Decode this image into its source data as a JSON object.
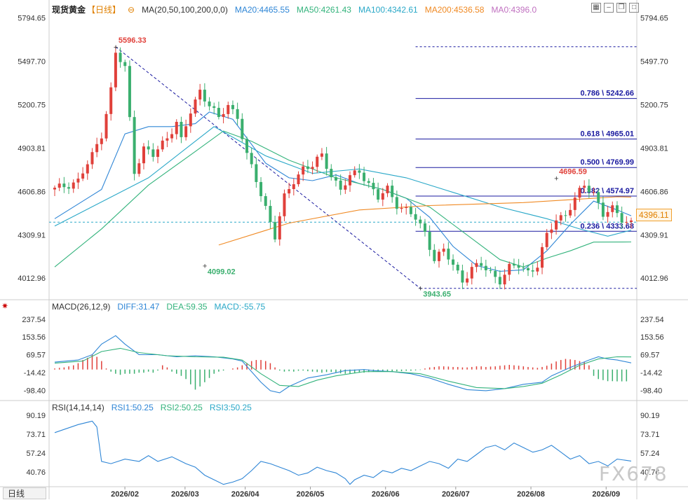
{
  "header": {
    "symbol": "现货黄金",
    "period_tag": "【日线】",
    "ma_label": "MA(20,50,100,200,0,0)",
    "ma20": "MA20:4465.55",
    "ma50": "MA50:4261.43",
    "ma100": "MA100:4342.61",
    "ma200": "MA200:4536.58",
    "ma0": "MA0:4396.0"
  },
  "macd_header": {
    "label": "MACD(26,12,9)",
    "diff": "DIFF:31.47",
    "dea": "DEA:59.35",
    "macd": "MACD:-55.75"
  },
  "rsi_header": {
    "label": "RSI(14,14,14)",
    "rsi1": "RSI1:50.25",
    "rsi2": "RSI2:50.25",
    "rsi3": "RSI3:50.25"
  },
  "footer": {
    "period_tab": "日线",
    "watermark": "FX678"
  },
  "colors": {
    "up": "#e0403a",
    "down": "#3aaf6e",
    "ma20": "#2f86d6",
    "ma50": "#33b37c",
    "ma100": "#2aa8c8",
    "ma200": "#f08a24",
    "fib": "#1a1aa0",
    "price_line": "#2aa8c8",
    "diff": "#2f86d6",
    "dea": "#33b37c",
    "rsi": "#2f86d6"
  },
  "chart_data": [
    {
      "type": "candlestick",
      "title": "",
      "ylim": [
        3880,
        5830
      ],
      "y_ticks": [
        5794.65,
        5497.7,
        5200.75,
        4903.81,
        4606.86,
        4309.91,
        4012.96
      ],
      "x_ticks": [
        "2026/02",
        "2026/03",
        "2026/04",
        "2026/05",
        "2026/06",
        "2026/07",
        "2026/08",
        "2026/09"
      ],
      "annotations": [
        {
          "text": "5596.33",
          "value": 5596.33
        },
        {
          "text": "4099.02",
          "value": 4099.02
        },
        {
          "text": "3943.65",
          "value": 3943.65
        },
        {
          "text": "4696.59",
          "value": 4696.59
        }
      ],
      "fibonacci": [
        {
          "label": "0.786 \\ 5242.66",
          "value": 5242.66
        },
        {
          "label": "0.618 \\ 4965.01",
          "value": 4965.01
        },
        {
          "label": "0.500 \\ 4769.99",
          "value": 4769.99
        },
        {
          "label": "0.382 \\ 4574.97",
          "value": 4574.97
        },
        {
          "label": "0.236 \\ 4333.68",
          "value": 4333.68
        }
      ],
      "current_price": "4396.11",
      "current_value": 4396.11,
      "close_path": [
        [
          0,
          4620
        ],
        [
          5,
          4680
        ],
        [
          8,
          4850
        ],
        [
          10,
          5000
        ],
        [
          12,
          5300
        ],
        [
          13,
          5550
        ],
        [
          15,
          5450
        ],
        [
          17,
          4750
        ],
        [
          19,
          4900
        ],
        [
          21,
          4850
        ],
        [
          24,
          4980
        ],
        [
          26,
          5080
        ],
        [
          27,
          4950
        ],
        [
          29,
          5150
        ],
        [
          31,
          5300
        ],
        [
          33,
          5200
        ],
        [
          35,
          5100
        ],
        [
          37,
          5200
        ],
        [
          39,
          5120
        ],
        [
          41,
          4850
        ],
        [
          43,
          4680
        ],
        [
          45,
          4500
        ],
        [
          47,
          4300
        ],
        [
          49,
          4560
        ],
        [
          51,
          4680
        ],
        [
          53,
          4770
        ],
        [
          55,
          4780
        ],
        [
          57,
          4850
        ],
        [
          59,
          4720
        ],
        [
          61,
          4620
        ],
        [
          63,
          4700
        ],
        [
          65,
          4750
        ],
        [
          67,
          4660
        ],
        [
          69,
          4560
        ],
        [
          71,
          4620
        ],
        [
          73,
          4520
        ],
        [
          75,
          4480
        ],
        [
          77,
          4420
        ],
        [
          79,
          4320
        ],
        [
          81,
          4150
        ],
        [
          83,
          4200
        ],
        [
          85,
          4100
        ],
        [
          87,
          4000
        ],
        [
          89,
          4080
        ],
        [
          91,
          4100
        ],
        [
          93,
          4050
        ],
        [
          95,
          4000
        ],
        [
          97,
          4080
        ],
        [
          99,
          4100
        ],
        [
          101,
          4060
        ],
        [
          103,
          4100
        ],
        [
          105,
          4300
        ],
        [
          107,
          4420
        ],
        [
          109,
          4450
        ],
        [
          111,
          4550
        ],
        [
          113,
          4650
        ],
        [
          115,
          4600
        ],
        [
          117,
          4450
        ],
        [
          119,
          4480
        ],
        [
          121,
          4420
        ],
        [
          123,
          4396
        ]
      ],
      "ma_paths": {
        "ma20": [
          [
            0,
            4420
          ],
          [
            10,
            4620
          ],
          [
            15,
            5000
          ],
          [
            20,
            5050
          ],
          [
            25,
            5050
          ],
          [
            30,
            5070
          ],
          [
            33,
            5150
          ],
          [
            38,
            5100
          ],
          [
            45,
            4800
          ],
          [
            50,
            4700
          ],
          [
            55,
            4680
          ],
          [
            60,
            4720
          ],
          [
            65,
            4660
          ],
          [
            70,
            4620
          ],
          [
            75,
            4560
          ],
          [
            80,
            4430
          ],
          [
            85,
            4230
          ],
          [
            90,
            4100
          ],
          [
            95,
            4060
          ],
          [
            100,
            4070
          ],
          [
            105,
            4200
          ],
          [
            110,
            4380
          ],
          [
            115,
            4540
          ],
          [
            120,
            4480
          ],
          [
            123,
            4440
          ]
        ],
        "ma50": [
          [
            0,
            4090
          ],
          [
            10,
            4350
          ],
          [
            20,
            4650
          ],
          [
            30,
            4880
          ],
          [
            36,
            5020
          ],
          [
            42,
            4950
          ],
          [
            50,
            4820
          ],
          [
            60,
            4700
          ],
          [
            70,
            4620
          ],
          [
            80,
            4500
          ],
          [
            90,
            4260
          ],
          [
            95,
            4140
          ],
          [
            100,
            4090
          ],
          [
            105,
            4150
          ],
          [
            110,
            4200
          ],
          [
            115,
            4260
          ],
          [
            123,
            4261
          ]
        ],
        "ma100": [
          [
            0,
            4370
          ],
          [
            20,
            4700
          ],
          [
            34,
            5050
          ],
          [
            45,
            4850
          ],
          [
            55,
            4730
          ],
          [
            65,
            4760
          ],
          [
            75,
            4700
          ],
          [
            85,
            4600
          ],
          [
            95,
            4500
          ],
          [
            105,
            4420
          ],
          [
            112,
            4350
          ],
          [
            118,
            4300
          ],
          [
            123,
            4342
          ]
        ],
        "ma200": [
          [
            35,
            4240
          ],
          [
            50,
            4390
          ],
          [
            65,
            4480
          ],
          [
            80,
            4510
          ],
          [
            90,
            4520
          ],
          [
            100,
            4530
          ],
          [
            110,
            4550
          ],
          [
            120,
            4570
          ],
          [
            123,
            4568
          ]
        ]
      }
    },
    {
      "type": "bar",
      "title": "MACD(26,12,9)",
      "ylim": [
        -140,
        290
      ],
      "y_ticks": [
        237.54,
        153.56,
        69.57,
        -14.42,
        -98.4
      ],
      "histogram": [
        5,
        8,
        10,
        15,
        20,
        30,
        45,
        55,
        70,
        60,
        40,
        5,
        -10,
        -20,
        -25,
        -20,
        -20,
        -20,
        -15,
        -15,
        -10,
        -15,
        -5,
        20,
        10,
        -10,
        -20,
        -30,
        -45,
        -70,
        -95,
        -80,
        -60,
        -40,
        -20,
        -10,
        -5,
        0,
        5,
        10,
        20,
        30,
        40,
        45,
        45,
        40,
        30,
        10,
        -5,
        -10,
        -8,
        -10,
        -6,
        -5,
        -8,
        -10,
        -12,
        -15,
        -12,
        -12,
        -15,
        -18,
        -20,
        -20,
        -18,
        -15,
        -15,
        -12,
        -10,
        -10,
        -8,
        -8,
        -8,
        -8,
        -8,
        -6,
        -6,
        -4,
        -2,
        5,
        10,
        12,
        15,
        15,
        14,
        12,
        12,
        10,
        10,
        12,
        15,
        15,
        12,
        14,
        15,
        18,
        20,
        22,
        20,
        18,
        15,
        12,
        10,
        8,
        12,
        18,
        28,
        38,
        45,
        50,
        48,
        45,
        40,
        35,
        20,
        -30,
        -45,
        -50,
        -55,
        -55,
        -56,
        -56,
        -55.75
      ],
      "series": [
        {
          "name": "DIFF",
          "values": [
            [
              0,
              35
            ],
            [
              5,
              45
            ],
            [
              8,
              70
            ],
            [
              10,
              120
            ],
            [
              13,
              160
            ],
            [
              15,
              120
            ],
            [
              18,
              70
            ],
            [
              22,
              70
            ],
            [
              26,
              60
            ],
            [
              30,
              65
            ],
            [
              34,
              60
            ],
            [
              38,
              50
            ],
            [
              40,
              40
            ],
            [
              42,
              -10
            ],
            [
              44,
              -60
            ],
            [
              46,
              -100
            ],
            [
              48,
              -110
            ],
            [
              50,
              -80
            ],
            [
              54,
              -40
            ],
            [
              58,
              -25
            ],
            [
              62,
              -5
            ],
            [
              66,
              0
            ],
            [
              68,
              -5
            ],
            [
              72,
              -10
            ],
            [
              76,
              -20
            ],
            [
              80,
              -40
            ],
            [
              84,
              -70
            ],
            [
              88,
              -95
            ],
            [
              92,
              -100
            ],
            [
              96,
              -90
            ],
            [
              100,
              -70
            ],
            [
              104,
              -60
            ],
            [
              106,
              -30
            ],
            [
              110,
              10
            ],
            [
              114,
              45
            ],
            [
              116,
              60
            ],
            [
              118,
              50
            ],
            [
              120,
              45
            ],
            [
              123,
              31.47
            ]
          ]
        },
        {
          "name": "DEA",
          "values": [
            [
              0,
              30
            ],
            [
              6,
              40
            ],
            [
              10,
              85
            ],
            [
              14,
              100
            ],
            [
              18,
              80
            ],
            [
              24,
              65
            ],
            [
              30,
              60
            ],
            [
              36,
              58
            ],
            [
              40,
              45
            ],
            [
              44,
              -20
            ],
            [
              48,
              -75
            ],
            [
              52,
              -80
            ],
            [
              56,
              -50
            ],
            [
              60,
              -30
            ],
            [
              66,
              -10
            ],
            [
              72,
              -10
            ],
            [
              78,
              -20
            ],
            [
              84,
              -55
            ],
            [
              90,
              -85
            ],
            [
              96,
              -90
            ],
            [
              100,
              -80
            ],
            [
              104,
              -65
            ],
            [
              108,
              -25
            ],
            [
              112,
              20
            ],
            [
              116,
              50
            ],
            [
              120,
              60
            ],
            [
              123,
              59.35
            ]
          ]
        }
      ]
    },
    {
      "type": "line",
      "title": "RSI(14,14,14)",
      "ylim": [
        28,
        98
      ],
      "y_ticks": [
        90.19,
        73.71,
        57.24,
        40.76
      ],
      "series": [
        {
          "name": "RSI1",
          "values": [
            [
              0,
              75
            ],
            [
              5,
              82
            ],
            [
              8,
              85
            ],
            [
              9,
              80
            ],
            [
              10,
              50
            ],
            [
              12,
              48
            ],
            [
              15,
              52
            ],
            [
              18,
              50
            ],
            [
              20,
              55
            ],
            [
              22,
              50
            ],
            [
              25,
              54
            ],
            [
              28,
              48
            ],
            [
              30,
              45
            ],
            [
              32,
              38
            ],
            [
              34,
              34
            ],
            [
              36,
              30
            ],
            [
              38,
              32
            ],
            [
              40,
              35
            ],
            [
              42,
              42
            ],
            [
              44,
              50
            ],
            [
              46,
              48
            ],
            [
              48,
              45
            ],
            [
              50,
              42
            ],
            [
              52,
              38
            ],
            [
              54,
              40
            ],
            [
              56,
              45
            ],
            [
              58,
              42
            ],
            [
              60,
              40
            ],
            [
              62,
              35
            ],
            [
              63,
              30
            ],
            [
              64,
              34
            ],
            [
              66,
              38
            ],
            [
              68,
              36
            ],
            [
              70,
              42
            ],
            [
              72,
              40
            ],
            [
              74,
              44
            ],
            [
              76,
              42
            ],
            [
              78,
              46
            ],
            [
              80,
              50
            ],
            [
              82,
              48
            ],
            [
              84,
              44
            ],
            [
              86,
              52
            ],
            [
              88,
              50
            ],
            [
              90,
              56
            ],
            [
              92,
              62
            ],
            [
              94,
              64
            ],
            [
              96,
              60
            ],
            [
              98,
              66
            ],
            [
              100,
              62
            ],
            [
              102,
              58
            ],
            [
              104,
              60
            ],
            [
              106,
              64
            ],
            [
              108,
              58
            ],
            [
              110,
              52
            ],
            [
              112,
              55
            ],
            [
              114,
              48
            ],
            [
              116,
              50
            ],
            [
              118,
              46
            ],
            [
              120,
              52
            ],
            [
              123,
              50.25
            ]
          ]
        }
      ]
    }
  ]
}
